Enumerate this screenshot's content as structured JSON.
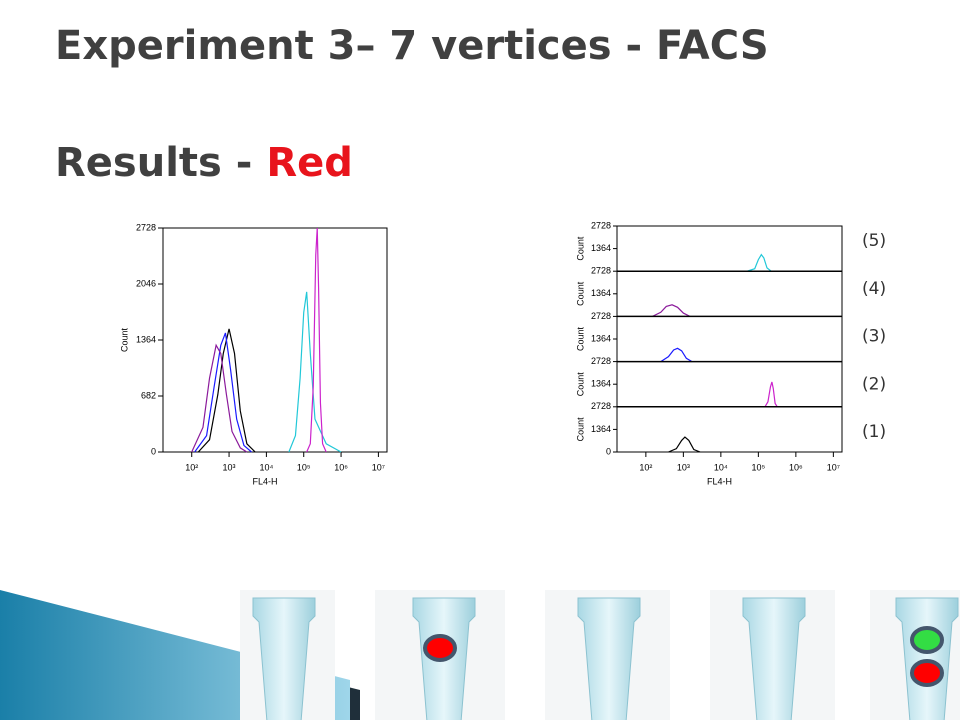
{
  "slide": {
    "title": "Experiment 3– 7 vertices - FACS",
    "subtitle": "Results - ",
    "subtitle_highlight": "Red",
    "panel_labels": [
      "(5)",
      "(4)",
      "(3)",
      "(2)",
      "(1)"
    ]
  },
  "chart_data": [
    {
      "type": "line",
      "x_label": "FL4-H",
      "y_label": "Count",
      "log_x": true,
      "xlim": [
        17,
        17000000
      ],
      "ylim": [
        0,
        2728
      ],
      "xticks": [
        {
          "value": 100,
          "label": "10²"
        },
        {
          "value": 1000,
          "label": "10³"
        },
        {
          "value": 10000,
          "label": "10⁴"
        },
        {
          "value": 100000,
          "label": "10⁵"
        },
        {
          "value": 1000000,
          "label": "10⁶"
        },
        {
          "value": 10000000,
          "label": "10⁷"
        }
      ],
      "yticks": [
        0,
        682,
        1364,
        2046,
        2728
      ],
      "series": [
        {
          "color": "#000000",
          "x": [
            150,
            300,
            500,
            700,
            1000,
            1400,
            2000,
            3000,
            5000
          ],
          "values": [
            0,
            150,
            700,
            1200,
            1500,
            1200,
            500,
            100,
            0
          ]
        },
        {
          "color": "#1a1aff",
          "x": [
            120,
            250,
            400,
            600,
            800,
            1100,
            1600,
            2500,
            4000
          ],
          "values": [
            0,
            200,
            800,
            1300,
            1450,
            1000,
            400,
            80,
            0
          ]
        },
        {
          "color": "#8b1a9b",
          "x": [
            100,
            200,
            300,
            450,
            600,
            850,
            1200,
            2000,
            3000
          ],
          "values": [
            0,
            300,
            900,
            1300,
            1200,
            700,
            250,
            50,
            0
          ]
        },
        {
          "color": "#22c8d8",
          "x": [
            40000,
            60000,
            80000,
            100000,
            120000,
            150000,
            200000,
            400000,
            1000000
          ],
          "values": [
            0,
            200,
            900,
            1700,
            1950,
            1200,
            400,
            100,
            0
          ]
        },
        {
          "color": "#cc22cc",
          "x": [
            120000,
            150000,
            180000,
            210000,
            230000,
            250000,
            280000,
            320000,
            400000
          ],
          "values": [
            0,
            100,
            800,
            2400,
            2728,
            2000,
            600,
            100,
            0
          ]
        }
      ]
    },
    {
      "type": "panels",
      "x_label": "FL4-H",
      "y_label": "Count",
      "log_x": true,
      "xlim": [
        17,
        17000000
      ],
      "ylim": [
        0,
        2728
      ],
      "xticks": [
        {
          "value": 100,
          "label": "10²"
        },
        {
          "value": 1000,
          "label": "10³"
        },
        {
          "value": 10000,
          "label": "10⁴"
        },
        {
          "value": 100000,
          "label": "10⁵"
        },
        {
          "value": 1000000,
          "label": "10⁶"
        },
        {
          "value": 10000000,
          "label": "10⁷"
        }
      ],
      "panels": [
        {
          "yticks": [
            1364,
            2728
          ],
          "series": [
            {
              "color": "#22c8d8",
              "x": [
                50000,
                80000,
                100000,
                120000,
                140000,
                170000,
                220000
              ],
              "values": [
                0,
                150,
                700,
                1000,
                800,
                200,
                0
              ]
            }
          ]
        },
        {
          "yticks": [
            1364,
            2728
          ],
          "series": [
            {
              "color": "#8b1a9b",
              "x": [
                150,
                250,
                350,
                500,
                700,
                1000,
                1500
              ],
              "values": [
                0,
                250,
                600,
                700,
                550,
                200,
                0
              ]
            }
          ]
        },
        {
          "yticks": [
            1364,
            2728
          ],
          "series": [
            {
              "color": "#1a1aff",
              "x": [
                250,
                400,
                550,
                700,
                900,
                1200,
                1700
              ],
              "values": [
                0,
                300,
                700,
                800,
                650,
                200,
                0
              ]
            }
          ]
        },
        {
          "yticks": [
            1364,
            2728
          ],
          "series": [
            {
              "color": "#cc22cc",
              "x": [
                150000,
                180000,
                210000,
                230000,
                250000,
                280000,
                320000
              ],
              "values": [
                0,
                300,
                1200,
                1500,
                1100,
                200,
                0
              ]
            }
          ]
        },
        {
          "yticks": [
            0,
            1364,
            2728
          ],
          "series": [
            {
              "color": "#000000",
              "x": [
                400,
                650,
                900,
                1100,
                1400,
                1900,
                2800
              ],
              "values": [
                0,
                200,
                700,
                900,
                700,
                150,
                0
              ]
            }
          ]
        }
      ]
    }
  ]
}
